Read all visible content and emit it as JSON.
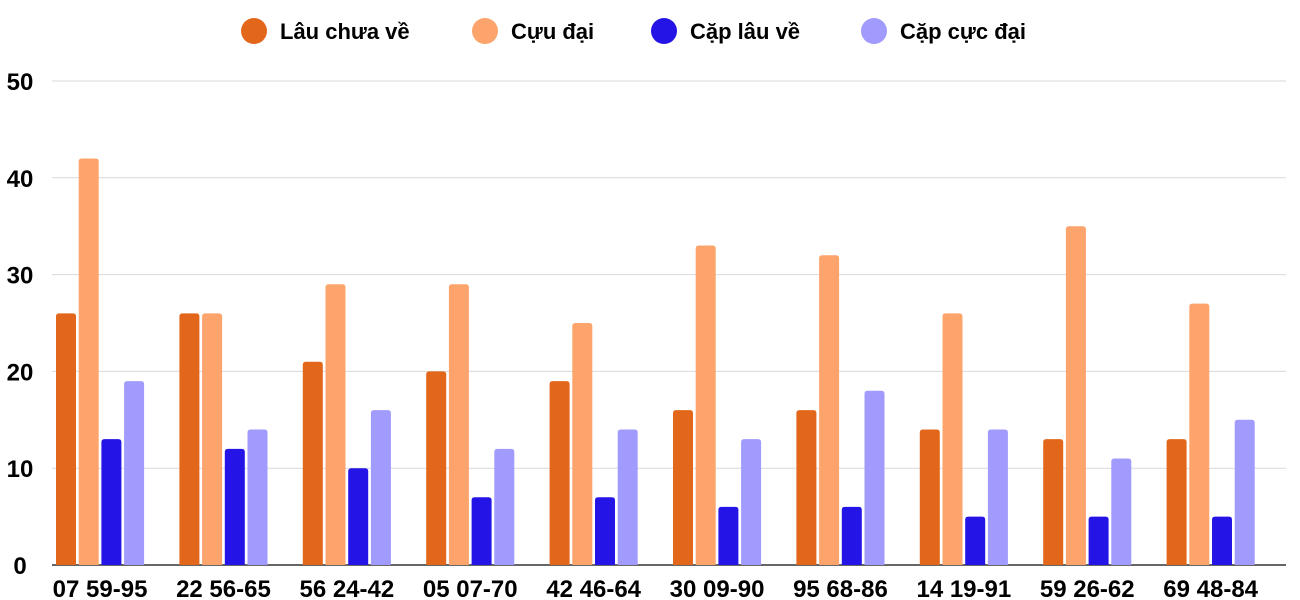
{
  "chart_data": {
    "type": "bar",
    "title": "",
    "xlabel": "",
    "ylabel": "",
    "ylim": [
      0,
      50
    ],
    "yticks": [
      0,
      10,
      20,
      30,
      40,
      50
    ],
    "grid": true,
    "legend_position": "top-center",
    "categories": [
      "07 59-95",
      "22 56-65",
      "56 24-42",
      "05 07-70",
      "42 46-64",
      "30 09-90",
      "95 68-86",
      "14 19-91",
      "59 26-62",
      "69 48-84"
    ],
    "series": [
      {
        "name": "Lâu chưa về",
        "color": "#e2671b",
        "values": [
          26,
          26,
          21,
          20,
          19,
          16,
          16,
          14,
          13,
          13
        ]
      },
      {
        "name": "Cựu đại",
        "color": "#fca46b",
        "values": [
          42,
          26,
          29,
          29,
          25,
          33,
          32,
          26,
          35,
          27
        ]
      },
      {
        "name": "Cặp lâu về",
        "color": "#2514e6",
        "values": [
          13,
          12,
          10,
          7,
          7,
          6,
          6,
          5,
          5,
          5
        ]
      },
      {
        "name": "Cặp cực đại",
        "color": "#a09bfc",
        "values": [
          19,
          14,
          16,
          12,
          14,
          13,
          18,
          14,
          11,
          15
        ]
      }
    ]
  }
}
